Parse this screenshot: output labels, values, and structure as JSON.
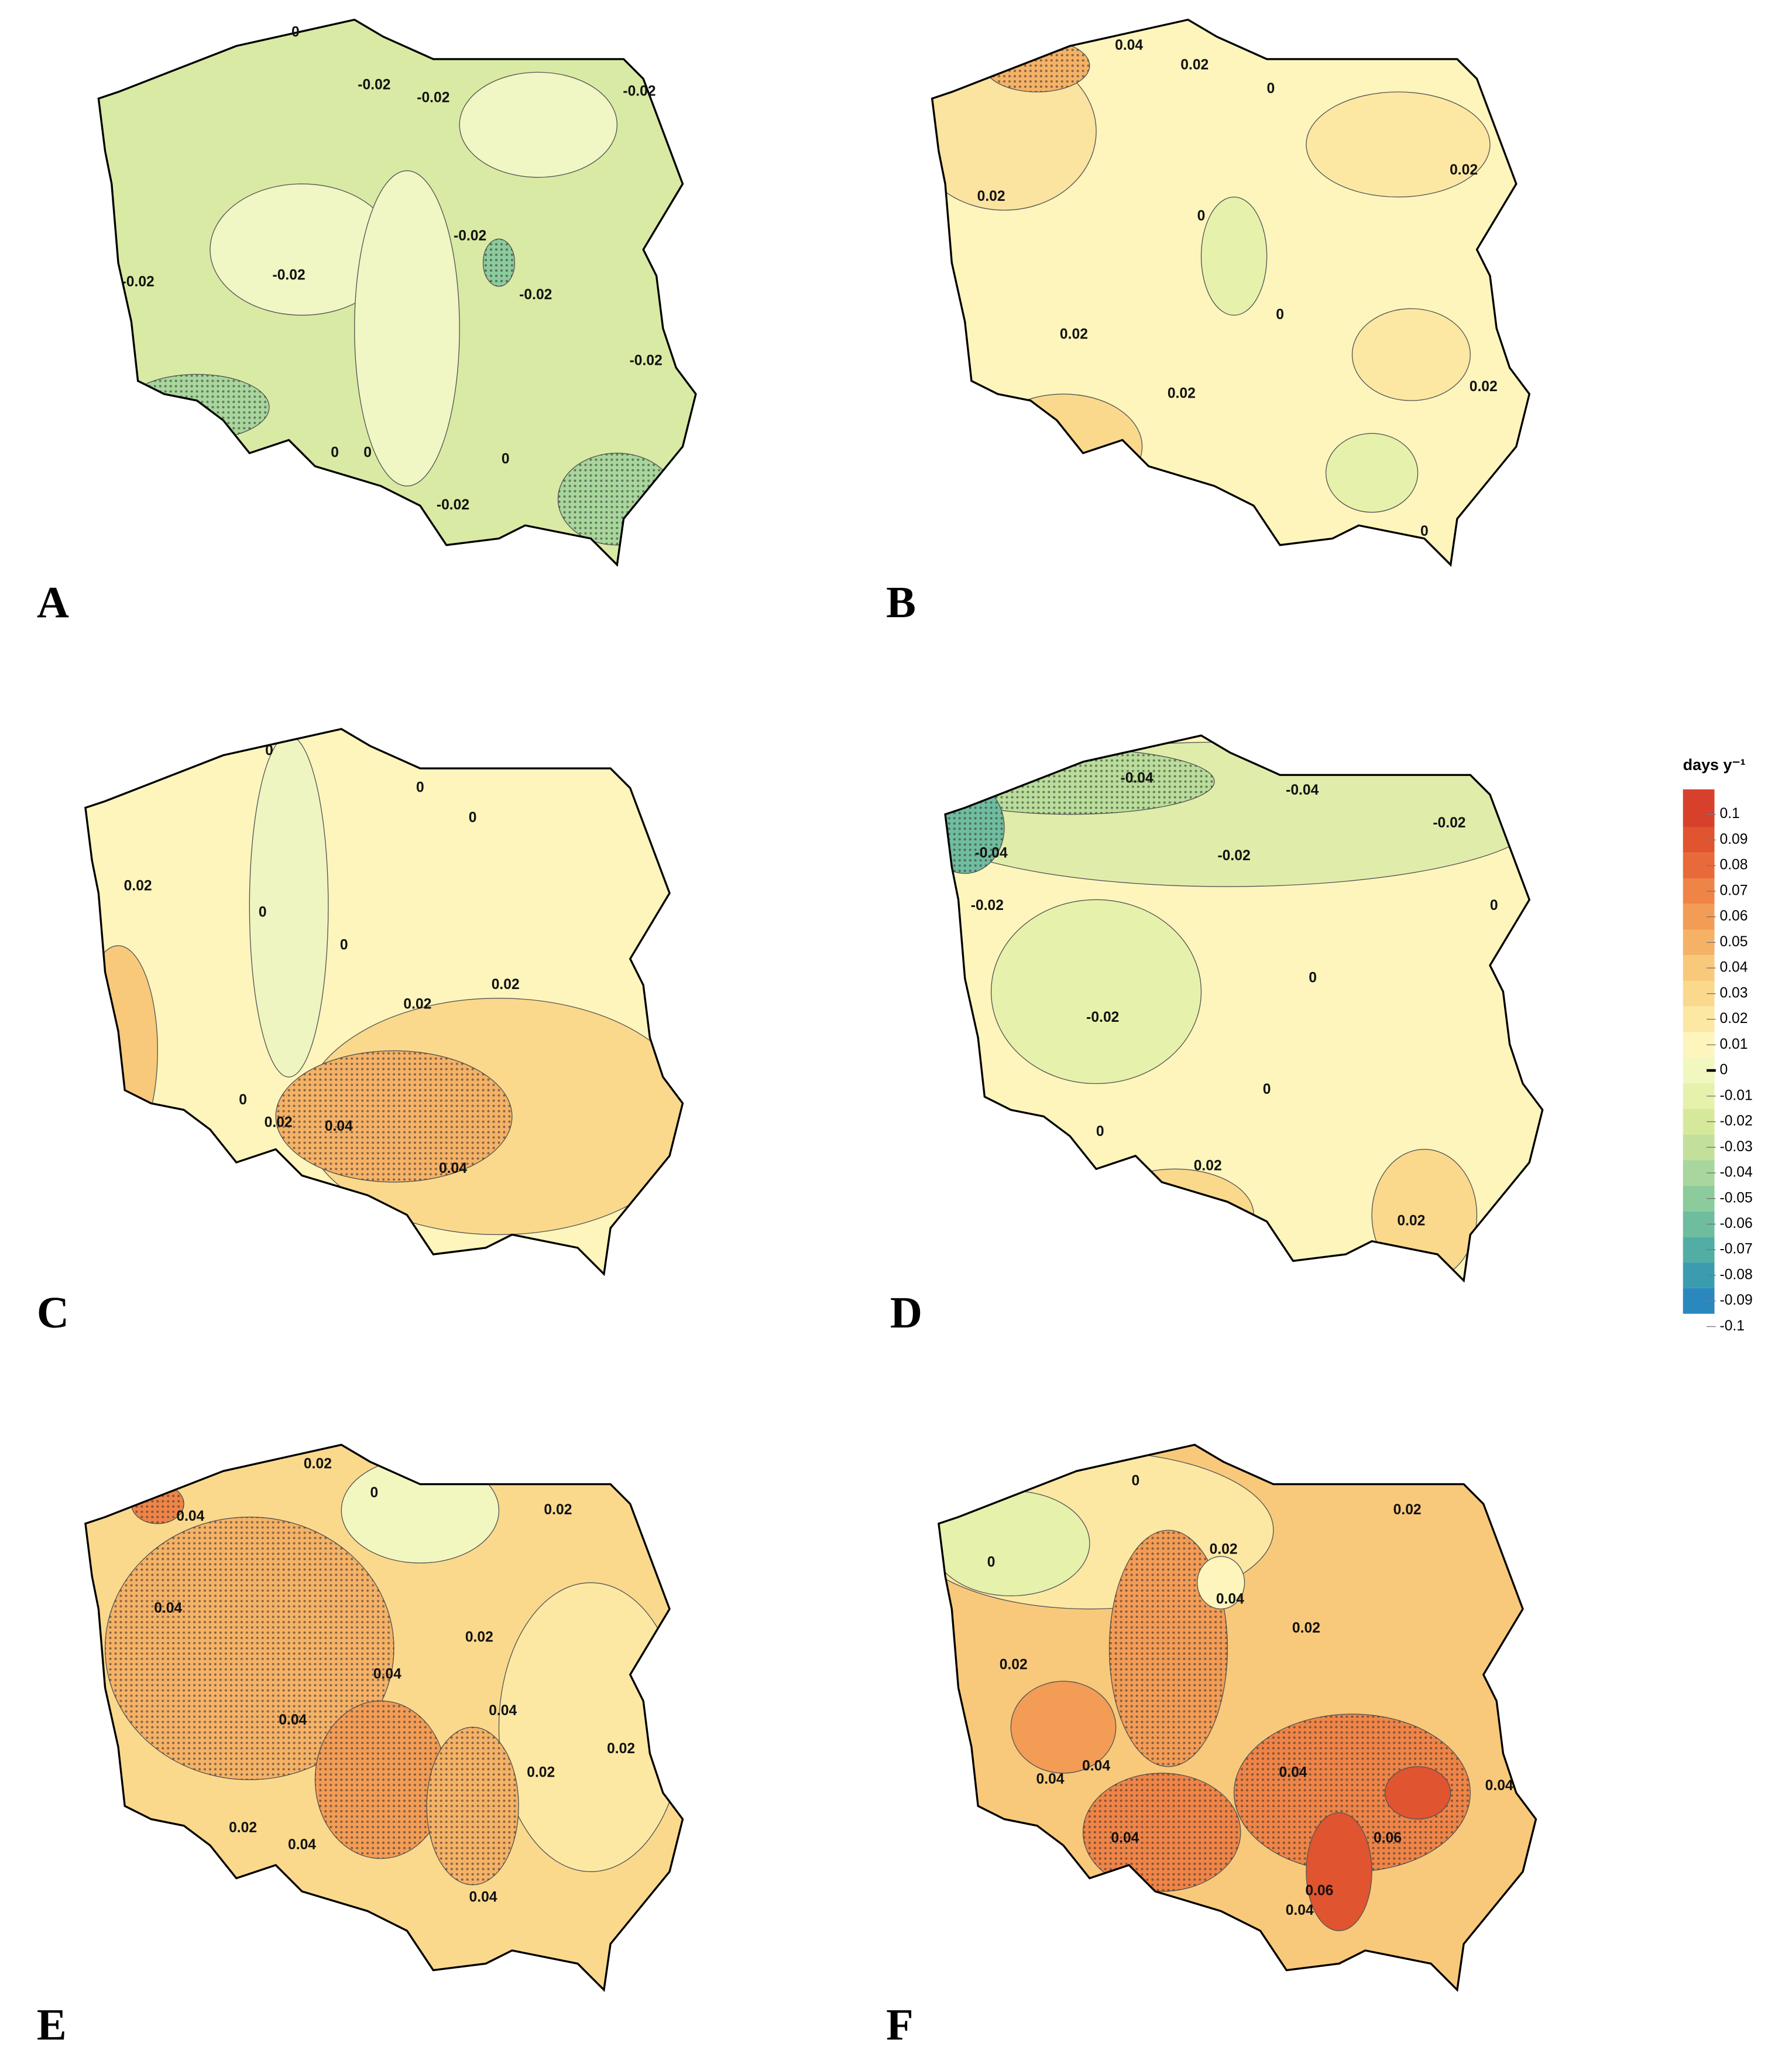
{
  "panels": [
    {
      "label": "A",
      "contour_labels": [
        "0",
        "-0.02",
        "-0.02",
        "-0.02",
        "-0.02",
        "-0.02",
        "-0.02",
        "-0.02",
        "-0.02",
        "0",
        "0",
        "0",
        "-0.02"
      ]
    },
    {
      "label": "B",
      "contour_labels": [
        "0.04",
        "0.02",
        "0",
        "0.02",
        "0.02",
        "0",
        "0",
        "0.02",
        "0.02",
        "0.02",
        "0"
      ]
    },
    {
      "label": "C",
      "contour_labels": [
        "0",
        "0",
        "0",
        "0.02",
        "0",
        "0",
        "0.02",
        "0.02",
        "0",
        "0.02",
        "0.04",
        "0.04"
      ]
    },
    {
      "label": "D",
      "contour_labels": [
        "-0.04",
        "-0.04",
        "-0.02",
        "-0.02",
        "-0.04",
        "-0.02",
        "0",
        "0",
        "-0.02",
        "0",
        "0",
        "0.02",
        "0.02"
      ]
    },
    {
      "label": "E",
      "contour_labels": [
        "0.02",
        "0",
        "0.04",
        "0.02",
        "0.04",
        "0.02",
        "0.04",
        "0.04",
        "0.04",
        "0.02",
        "0.02",
        "0.02",
        "0.04",
        "0.04"
      ]
    },
    {
      "label": "F",
      "contour_labels": [
        "0",
        "0.02",
        "0",
        "0.02",
        "0.04",
        "0.02",
        "0.02",
        "0.04",
        "0.04",
        "0.04",
        "0.04",
        "0.04",
        "0.06",
        "0.06",
        "0.04"
      ]
    }
  ],
  "legend": {
    "title": "days y⁻¹",
    "ticks": [
      0.1,
      0.09,
      0.08,
      0.07,
      0.06,
      0.05,
      0.04,
      0.03,
      0.02,
      0.01,
      0,
      -0.01,
      -0.02,
      -0.03,
      -0.04,
      -0.05,
      -0.06,
      -0.07,
      -0.08,
      -0.09,
      -0.1
    ],
    "colors": [
      "#d7402b",
      "#e0542f",
      "#e86a3a",
      "#ef8447",
      "#f39c55",
      "#f5b266",
      "#f8c97a",
      "#fad98d",
      "#fce8a3",
      "#fdf5bc",
      "#f2f7c0",
      "#e6f1ac",
      "#d6e99a",
      "#c2e09a",
      "#a8d69c",
      "#8ccb9c",
      "#6fbd9f",
      "#52aea4",
      "#3a9cae",
      "#2b88bf"
    ]
  }
}
